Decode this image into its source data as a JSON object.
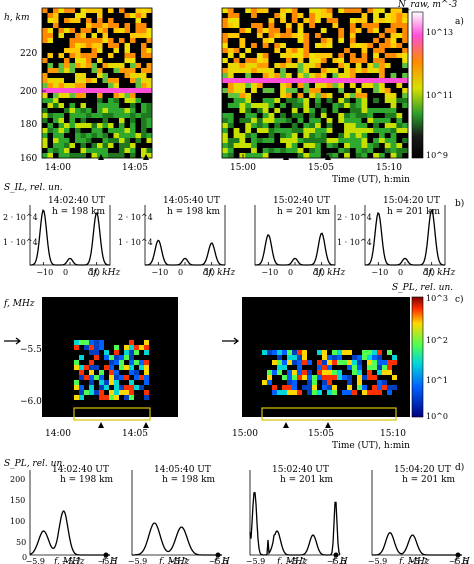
{
  "panel_a": {
    "panel_label": "a)",
    "ylabel": "h, km",
    "xlabel": "Time (UT), h:min",
    "colorbar_label": "N_raw, m^-3",
    "colorbar_ticks": [
      "10^13",
      "10^11",
      "10^9"
    ],
    "yticks": [
      "220",
      "200",
      "180",
      "160"
    ],
    "xticks_left": [
      "14:00",
      "14:05"
    ],
    "xticks_right": [
      "15:00",
      "15:05",
      "15:10"
    ]
  },
  "panel_b": {
    "panel_label": "b)",
    "ylabel": "S_IL, rel. un.",
    "yticks": [
      "2 · 10^4",
      "1 · 10^4"
    ],
    "xticks": [
      "−10",
      "0",
      "10"
    ],
    "xunit": "δf, kHz",
    "subplots": [
      {
        "time": "14:02:40 UT",
        "height": "h = 198 km"
      },
      {
        "time": "14:05:40 UT",
        "height": "h = 198 km"
      },
      {
        "time": "15:02:40 UT",
        "height": "h = 201 km"
      },
      {
        "time": "15:04:20 UT",
        "height": "h = 201 km"
      }
    ]
  },
  "panel_c": {
    "panel_label": "c)",
    "ylabel": "f, MHz",
    "yticks": [
      "−5.5",
      "−6.0"
    ],
    "xlabel": "Time (UT), h:min",
    "xticks_left": [
      "14:00",
      "14:05"
    ],
    "xticks_right": [
      "15:00",
      "15:05",
      "15:10"
    ],
    "colorbar_label": "S_PL, rel. un.",
    "colorbar_ticks": [
      "10^3",
      "10^2",
      "10^1",
      "10^0"
    ]
  },
  "panel_d": {
    "panel_label": "d)",
    "ylabel": "S_PL, rel. un.",
    "yticks": [
      "200",
      "150",
      "100",
      "50",
      "0"
    ],
    "xticks": [
      "−5.9",
      "−5.7",
      "−5.5"
    ],
    "xunit": "f, MHz",
    "marker_label": "f_H",
    "subplots": [
      {
        "time": "14:02:40 UT",
        "height": "h = 198 km"
      },
      {
        "time": "14:05:40 UT",
        "height": "h = 198 km"
      },
      {
        "time": "15:02:40 UT",
        "height": "h = 201 km"
      },
      {
        "time": "15:04:20 UT",
        "height": "h = 201 km"
      }
    ]
  },
  "colors": {
    "background": "#ffffff",
    "heatmap_black": "#000000",
    "magenta_layer": "#ff4fd8",
    "bracket": "#d8c400"
  },
  "chart_data": [
    {
      "type": "heatmap",
      "name": "panel a",
      "y_range_km": [
        160,
        230
      ],
      "magenta_layer_km": 199
    },
    {
      "type": "line",
      "name": "panel b",
      "x_range_khz": [
        -15,
        15
      ],
      "peaks_khz": [
        -10,
        0,
        10
      ]
    },
    {
      "type": "heatmap",
      "name": "panel c",
      "y_range_mhz": [
        -6.2,
        -5.3
      ]
    },
    {
      "type": "line",
      "name": "panel d",
      "x_range_mhz": [
        -5.9,
        -5.5
      ]
    }
  ]
}
